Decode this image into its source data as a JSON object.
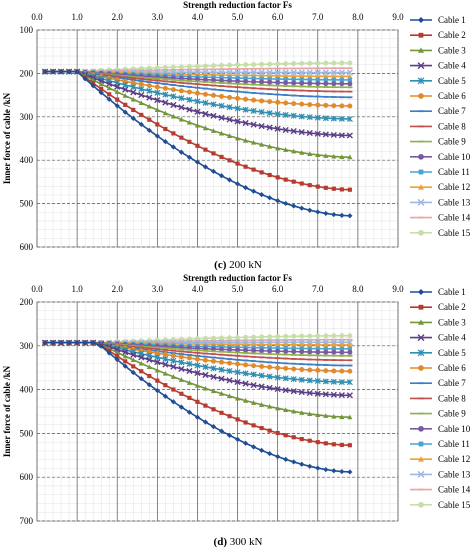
{
  "chart_data": [
    {
      "type": "line",
      "title": "",
      "xlabel": "Strength reduction factor Fs",
      "ylabel": "Inner force of cable /kN",
      "caption_letter": "(c)",
      "caption_text": " 200 kN",
      "xlim": [
        0,
        9
      ],
      "ylim": [
        100,
        600
      ],
      "y_inverted": true,
      "x_ticks": [
        "0.0",
        "1.0",
        "2.0",
        "3.0",
        "4.0",
        "5.0",
        "6.0",
        "7.0",
        "8.0",
        "9.0"
      ],
      "y_ticks": [
        "100",
        "200",
        "300",
        "400",
        "500",
        "600"
      ],
      "grid": true,
      "legend_position": "right",
      "x": [
        0.2,
        0.4,
        0.6,
        0.8,
        1.0,
        1.2,
        1.4,
        1.6,
        1.8,
        2.0,
        2.2,
        2.4,
        2.6,
        2.8,
        3.0,
        3.2,
        3.4,
        3.6,
        3.8,
        4.0,
        4.2,
        4.4,
        4.6,
        4.8,
        5.0,
        5.2,
        5.4,
        5.6,
        5.8,
        6.0,
        6.2,
        6.4,
        6.6,
        6.8,
        7.0,
        7.2,
        7.4,
        7.6,
        7.8
      ],
      "series": [
        {
          "name": "Cable 1",
          "color": "#1f4e96",
          "marker": "diamond",
          "final": 528
        },
        {
          "name": "Cable 2",
          "color": "#b83a2f",
          "marker": "square",
          "final": 468
        },
        {
          "name": "Cable 3",
          "color": "#72963a",
          "marker": "triangle",
          "final": 393
        },
        {
          "name": "Cable 4",
          "color": "#5b3f86",
          "marker": "x",
          "final": 343
        },
        {
          "name": "Cable 5",
          "color": "#2f8fb3",
          "marker": "star",
          "final": 305
        },
        {
          "name": "Cable 6",
          "color": "#e08a2c",
          "marker": "circle",
          "final": 275
        },
        {
          "name": "Cable 7",
          "color": "#3c7ec5",
          "marker": "dash",
          "final": 255
        },
        {
          "name": "Cable 8",
          "color": "#c0504d",
          "marker": "dash",
          "final": 242
        },
        {
          "name": "Cable 9",
          "color": "#8fb34a",
          "marker": "dash",
          "final": 232
        },
        {
          "name": "Cable 10",
          "color": "#7a5aa3",
          "marker": "circle",
          "final": 224
        },
        {
          "name": "Cable 11",
          "color": "#4aa3d1",
          "marker": "square",
          "final": 215
        },
        {
          "name": "Cable 12",
          "color": "#f0a030",
          "marker": "triangle",
          "final": 207
        },
        {
          "name": "Cable 13",
          "color": "#9db7e0",
          "marker": "x",
          "final": 198
        },
        {
          "name": "Cable 14",
          "color": "#eba5a5",
          "marker": "dash",
          "final": 188
        },
        {
          "name": "Cable 15",
          "color": "#c6dfa8",
          "marker": "circle",
          "final": 176
        }
      ],
      "initial_value": 196,
      "start_decline_x": 1.0
    },
    {
      "type": "line",
      "title": "",
      "xlabel": "Strength reduction factor Fs",
      "ylabel": "Inner force of cable /kN",
      "caption_letter": "(d)",
      "caption_text": " 300 kN",
      "xlim": [
        0,
        9
      ],
      "ylim": [
        200,
        700
      ],
      "y_inverted": true,
      "x_ticks": [
        "0.0",
        "1.0",
        "2.0",
        "3.0",
        "4.0",
        "5.0",
        "6.0",
        "7.0",
        "8.0",
        "9.0"
      ],
      "y_ticks": [
        "200",
        "300",
        "400",
        "500",
        "600",
        "700"
      ],
      "grid": true,
      "legend_position": "right",
      "x": [
        0.2,
        0.4,
        0.6,
        0.8,
        1.0,
        1.2,
        1.4,
        1.6,
        1.8,
        2.0,
        2.2,
        2.4,
        2.6,
        2.8,
        3.0,
        3.2,
        3.4,
        3.6,
        3.8,
        4.0,
        4.2,
        4.4,
        4.6,
        4.8,
        5.0,
        5.2,
        5.4,
        5.6,
        5.8,
        6.0,
        6.2,
        6.4,
        6.6,
        6.8,
        7.0,
        7.2,
        7.4,
        7.6,
        7.8
      ],
      "series": [
        {
          "name": "Cable 1",
          "color": "#1f4e96",
          "marker": "diamond",
          "final": 588
        },
        {
          "name": "Cable 2",
          "color": "#b83a2f",
          "marker": "square",
          "final": 527
        },
        {
          "name": "Cable 3",
          "color": "#72963a",
          "marker": "triangle",
          "final": 463
        },
        {
          "name": "Cable 4",
          "color": "#5b3f86",
          "marker": "x",
          "final": 413
        },
        {
          "name": "Cable 5",
          "color": "#2f8fb3",
          "marker": "star",
          "final": 383
        },
        {
          "name": "Cable 6",
          "color": "#e08a2c",
          "marker": "circle",
          "final": 358
        },
        {
          "name": "Cable 7",
          "color": "#3c7ec5",
          "marker": "dash",
          "final": 345
        },
        {
          "name": "Cable 8",
          "color": "#c0504d",
          "marker": "dash",
          "final": 333
        },
        {
          "name": "Cable 9",
          "color": "#8fb34a",
          "marker": "dash",
          "final": 323
        },
        {
          "name": "Cable 10",
          "color": "#7a5aa3",
          "marker": "circle",
          "final": 315
        },
        {
          "name": "Cable 11",
          "color": "#4aa3d1",
          "marker": "square",
          "final": 307
        },
        {
          "name": "Cable 12",
          "color": "#f0a030",
          "marker": "triangle",
          "final": 298
        },
        {
          "name": "Cable 13",
          "color": "#9db7e0",
          "marker": "x",
          "final": 292
        },
        {
          "name": "Cable 14",
          "color": "#eba5a5",
          "marker": "dash",
          "final": 286
        },
        {
          "name": "Cable 15",
          "color": "#c6dfa8",
          "marker": "circle",
          "final": 277
        }
      ],
      "initial_value": 293,
      "start_decline_x": 1.5
    }
  ]
}
